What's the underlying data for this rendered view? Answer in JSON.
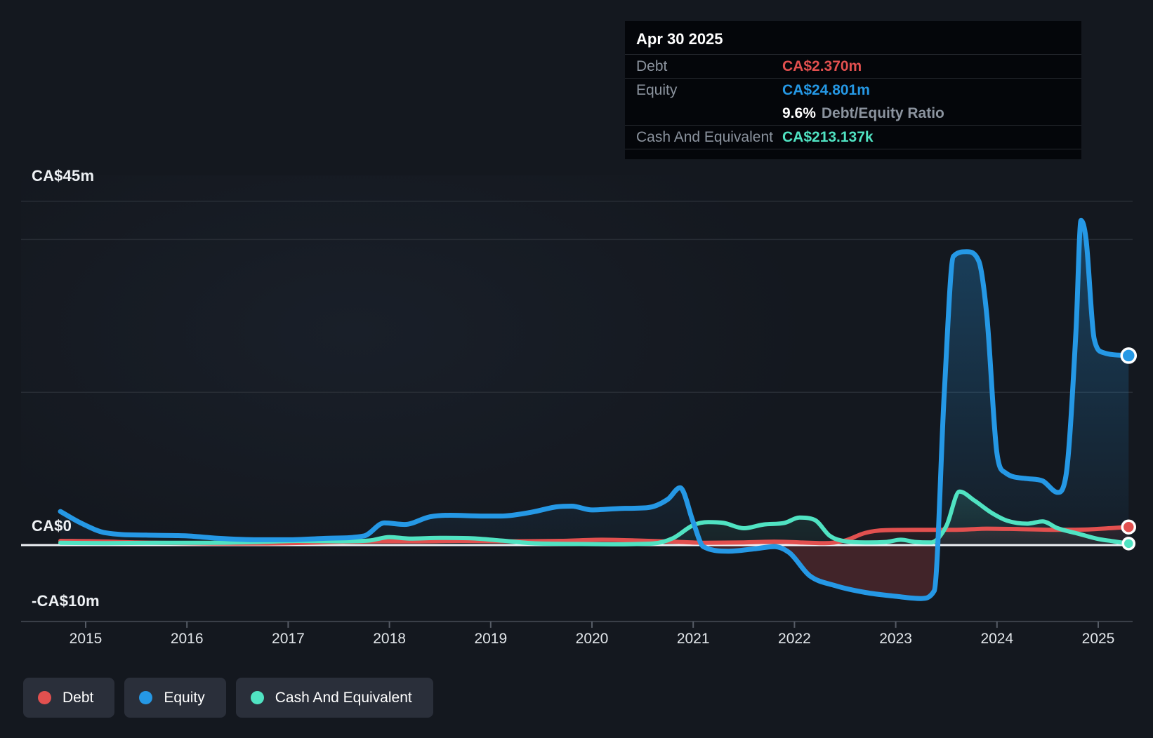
{
  "tooltip": {
    "date": "Apr 30 2025",
    "debt": {
      "label": "Debt",
      "value": "CA$2.370m"
    },
    "equity": {
      "label": "Equity",
      "value": "CA$24.801m"
    },
    "ratio": {
      "value": "9.6%",
      "label": "Debt/Equity Ratio"
    },
    "cash": {
      "label": "Cash And Equivalent",
      "value": "CA$213.137k"
    }
  },
  "colors": {
    "background": "#14181f",
    "grid": "#272c34",
    "zero_line": "#eef1f5",
    "axis_line": "#3c424b",
    "tick": "#565c66",
    "debt": "#e2504f",
    "equity": "#2598e5",
    "cash": "#50e3c2",
    "negative_equity_fill": "#e2504f"
  },
  "chart_data": {
    "type": "area",
    "unit": "CA$ millions",
    "x_ticks": [
      2015,
      2016,
      2017,
      2018,
      2019,
      2020,
      2021,
      2022,
      2023,
      2024,
      2025
    ],
    "x_range": [
      2014.35,
      2025.35
    ],
    "y_gridlines": [
      {
        "value": 45,
        "label": "CA$45m"
      },
      {
        "value": 40,
        "label": ""
      },
      {
        "value": 20,
        "label": ""
      },
      {
        "value": 0,
        "label": "CA$0"
      },
      {
        "value": -10,
        "label": "-CA$10m"
      }
    ],
    "legend_position": "bottom-left",
    "series": [
      {
        "name": "Debt",
        "color": "#e2504f",
        "points": [
          [
            2014.75,
            0.55
          ],
          [
            2015.1,
            0.5
          ],
          [
            2015.5,
            0.35
          ],
          [
            2016.0,
            0.25
          ],
          [
            2016.5,
            0.2
          ],
          [
            2017.0,
            0.25
          ],
          [
            2017.5,
            0.4
          ],
          [
            2017.9,
            0.5
          ],
          [
            2018.3,
            0.5
          ],
          [
            2018.7,
            0.55
          ],
          [
            2019.2,
            0.5
          ],
          [
            2019.7,
            0.55
          ],
          [
            2020.1,
            0.7
          ],
          [
            2020.45,
            0.6
          ],
          [
            2020.8,
            0.45
          ],
          [
            2021.1,
            0.3
          ],
          [
            2021.5,
            0.35
          ],
          [
            2021.8,
            0.45
          ],
          [
            2022.05,
            0.35
          ],
          [
            2022.3,
            0.25
          ],
          [
            2022.5,
            0.6
          ],
          [
            2022.7,
            1.6
          ],
          [
            2022.9,
            1.95
          ],
          [
            2023.2,
            2.0
          ],
          [
            2023.6,
            2.0
          ],
          [
            2023.9,
            2.15
          ],
          [
            2024.2,
            2.1
          ],
          [
            2024.6,
            2.0
          ],
          [
            2024.9,
            2.05
          ],
          [
            2025.1,
            2.2
          ],
          [
            2025.3,
            2.37
          ]
        ]
      },
      {
        "name": "Equity",
        "color": "#2598e5",
        "points": [
          [
            2014.75,
            4.4
          ],
          [
            2014.95,
            2.9
          ],
          [
            2015.2,
            1.6
          ],
          [
            2015.6,
            1.3
          ],
          [
            2016.0,
            1.2
          ],
          [
            2016.3,
            0.9
          ],
          [
            2016.7,
            0.7
          ],
          [
            2017.0,
            0.7
          ],
          [
            2017.4,
            0.9
          ],
          [
            2017.75,
            1.2
          ],
          [
            2017.95,
            2.9
          ],
          [
            2018.15,
            2.7
          ],
          [
            2018.4,
            3.7
          ],
          [
            2018.6,
            3.9
          ],
          [
            2018.9,
            3.8
          ],
          [
            2019.1,
            3.8
          ],
          [
            2019.4,
            4.3
          ],
          [
            2019.65,
            5.0
          ],
          [
            2019.8,
            5.1
          ],
          [
            2020.0,
            4.6
          ],
          [
            2020.3,
            4.8
          ],
          [
            2020.55,
            4.9
          ],
          [
            2020.75,
            6.0
          ],
          [
            2020.87,
            7.5
          ],
          [
            2021.0,
            3.0
          ],
          [
            2021.1,
            -0.2
          ],
          [
            2021.35,
            -0.8
          ],
          [
            2021.6,
            -0.5
          ],
          [
            2021.8,
            -0.2
          ],
          [
            2021.95,
            -1.0
          ],
          [
            2022.15,
            -4.0
          ],
          [
            2022.4,
            -5.3
          ],
          [
            2022.7,
            -6.2
          ],
          [
            2023.0,
            -6.7
          ],
          [
            2023.25,
            -7.0
          ],
          [
            2023.38,
            -6.0
          ],
          [
            2023.48,
            20.0
          ],
          [
            2023.57,
            37.8
          ],
          [
            2023.7,
            38.4
          ],
          [
            2023.82,
            37.2
          ],
          [
            2023.9,
            30.0
          ],
          [
            2024.0,
            12.0
          ],
          [
            2024.08,
            9.5
          ],
          [
            2024.3,
            8.7
          ],
          [
            2024.45,
            8.4
          ],
          [
            2024.6,
            6.9
          ],
          [
            2024.68,
            9.0
          ],
          [
            2024.78,
            28.0
          ],
          [
            2024.83,
            42.5
          ],
          [
            2024.88,
            40.0
          ],
          [
            2024.96,
            27.0
          ],
          [
            2025.05,
            25.2
          ],
          [
            2025.3,
            24.8
          ]
        ]
      },
      {
        "name": "Cash And Equivalent",
        "color": "#50e3c2",
        "points": [
          [
            2014.75,
            0.3
          ],
          [
            2015.2,
            0.25
          ],
          [
            2015.7,
            0.3
          ],
          [
            2016.2,
            0.3
          ],
          [
            2016.7,
            0.4
          ],
          [
            2017.1,
            0.55
          ],
          [
            2017.5,
            0.5
          ],
          [
            2017.8,
            0.6
          ],
          [
            2018.0,
            1.05
          ],
          [
            2018.2,
            0.85
          ],
          [
            2018.5,
            0.95
          ],
          [
            2018.8,
            0.9
          ],
          [
            2019.1,
            0.6
          ],
          [
            2019.4,
            0.25
          ],
          [
            2019.8,
            0.15
          ],
          [
            2020.2,
            0.1
          ],
          [
            2020.6,
            0.2
          ],
          [
            2020.8,
            0.9
          ],
          [
            2021.0,
            2.6
          ],
          [
            2021.15,
            3.0
          ],
          [
            2021.3,
            2.9
          ],
          [
            2021.5,
            2.2
          ],
          [
            2021.7,
            2.7
          ],
          [
            2021.9,
            2.9
          ],
          [
            2022.05,
            3.6
          ],
          [
            2022.2,
            3.3
          ],
          [
            2022.35,
            1.2
          ],
          [
            2022.5,
            0.5
          ],
          [
            2022.7,
            0.35
          ],
          [
            2022.9,
            0.4
          ],
          [
            2023.05,
            0.7
          ],
          [
            2023.2,
            0.4
          ],
          [
            2023.35,
            0.35
          ],
          [
            2023.5,
            2.5
          ],
          [
            2023.63,
            7.0
          ],
          [
            2023.78,
            5.8
          ],
          [
            2023.95,
            4.2
          ],
          [
            2024.1,
            3.2
          ],
          [
            2024.3,
            2.8
          ],
          [
            2024.45,
            3.1
          ],
          [
            2024.6,
            2.2
          ],
          [
            2024.8,
            1.5
          ],
          [
            2025.0,
            0.8
          ],
          [
            2025.15,
            0.5
          ],
          [
            2025.3,
            0.2
          ]
        ]
      }
    ]
  }
}
